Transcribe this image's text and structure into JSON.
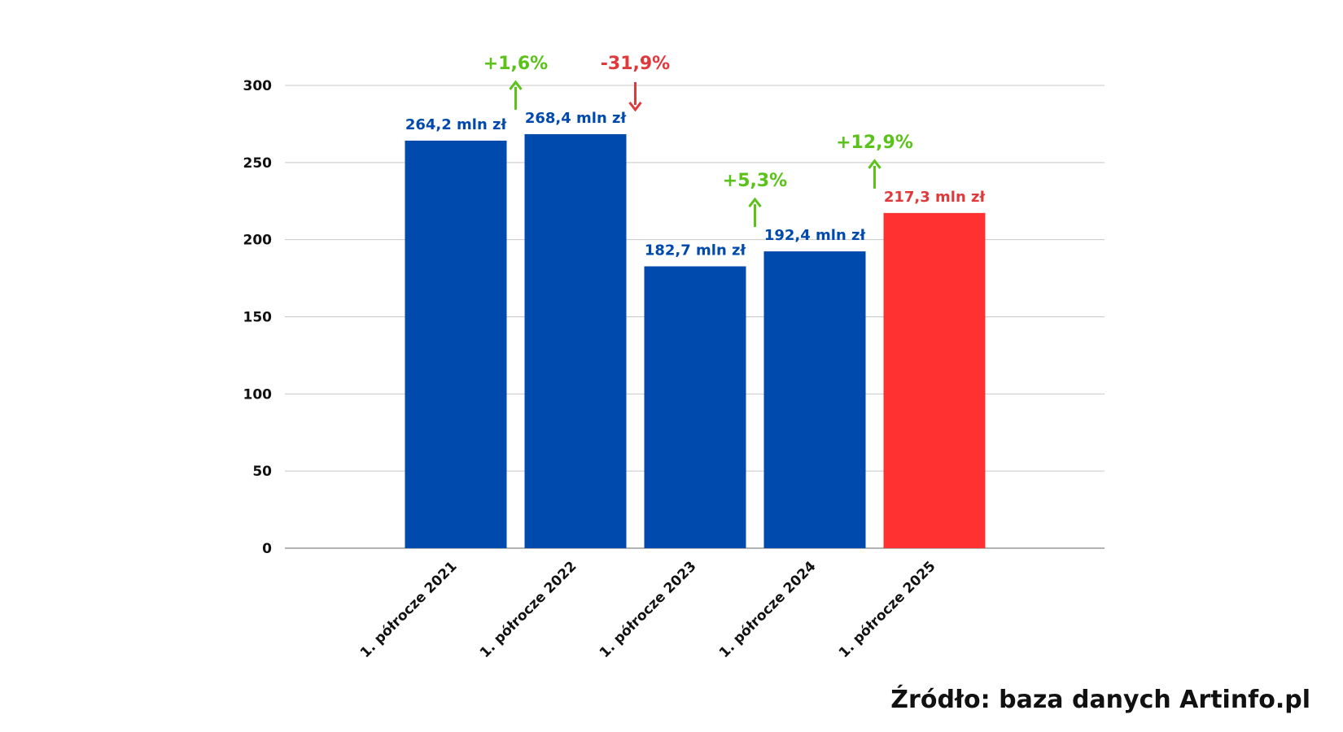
{
  "colors": {
    "bar_primary": "#004aad",
    "bar_highlight": "#ff3131",
    "label_primary": "#004aad",
    "label_highlight": "#e0393b",
    "change_up": "#5bc219",
    "change_down": "#e0393b",
    "grid": "#c8c8c8",
    "axis_text": "#111111"
  },
  "source_note": "Źródło: baza danych Artinfo.pl",
  "chart_data": {
    "type": "bar",
    "grid": true,
    "legend": "none",
    "ylim": [
      0,
      300
    ],
    "yticks": [
      0,
      50,
      100,
      150,
      200,
      250,
      300
    ],
    "ytick_labels": [
      "0",
      "50",
      "100",
      "150",
      "200",
      "250",
      "300"
    ],
    "categories": [
      "1. półrocze 2021",
      "1. półrocze 2022",
      "1. półrocze 2023",
      "1. półrocze 2024",
      "1. półrocze 2025"
    ],
    "values": [
      264.2,
      268.4,
      182.7,
      192.4,
      217.3
    ],
    "value_labels": [
      "264,2 mln zł",
      "268,4 mln zł",
      "182,7 mln zł",
      "192,4 mln zł",
      "217,3 mln zł"
    ],
    "highlight_index": 4,
    "changes": [
      {
        "from": 0,
        "to": 1,
        "label": "+1,6%",
        "direction": "up"
      },
      {
        "from": 1,
        "to": 2,
        "label": "-31,9%",
        "direction": "down"
      },
      {
        "from": 2,
        "to": 3,
        "label": "+5,3%",
        "direction": "up"
      },
      {
        "from": 3,
        "to": 4,
        "label": "+12,9%",
        "direction": "up"
      }
    ]
  }
}
